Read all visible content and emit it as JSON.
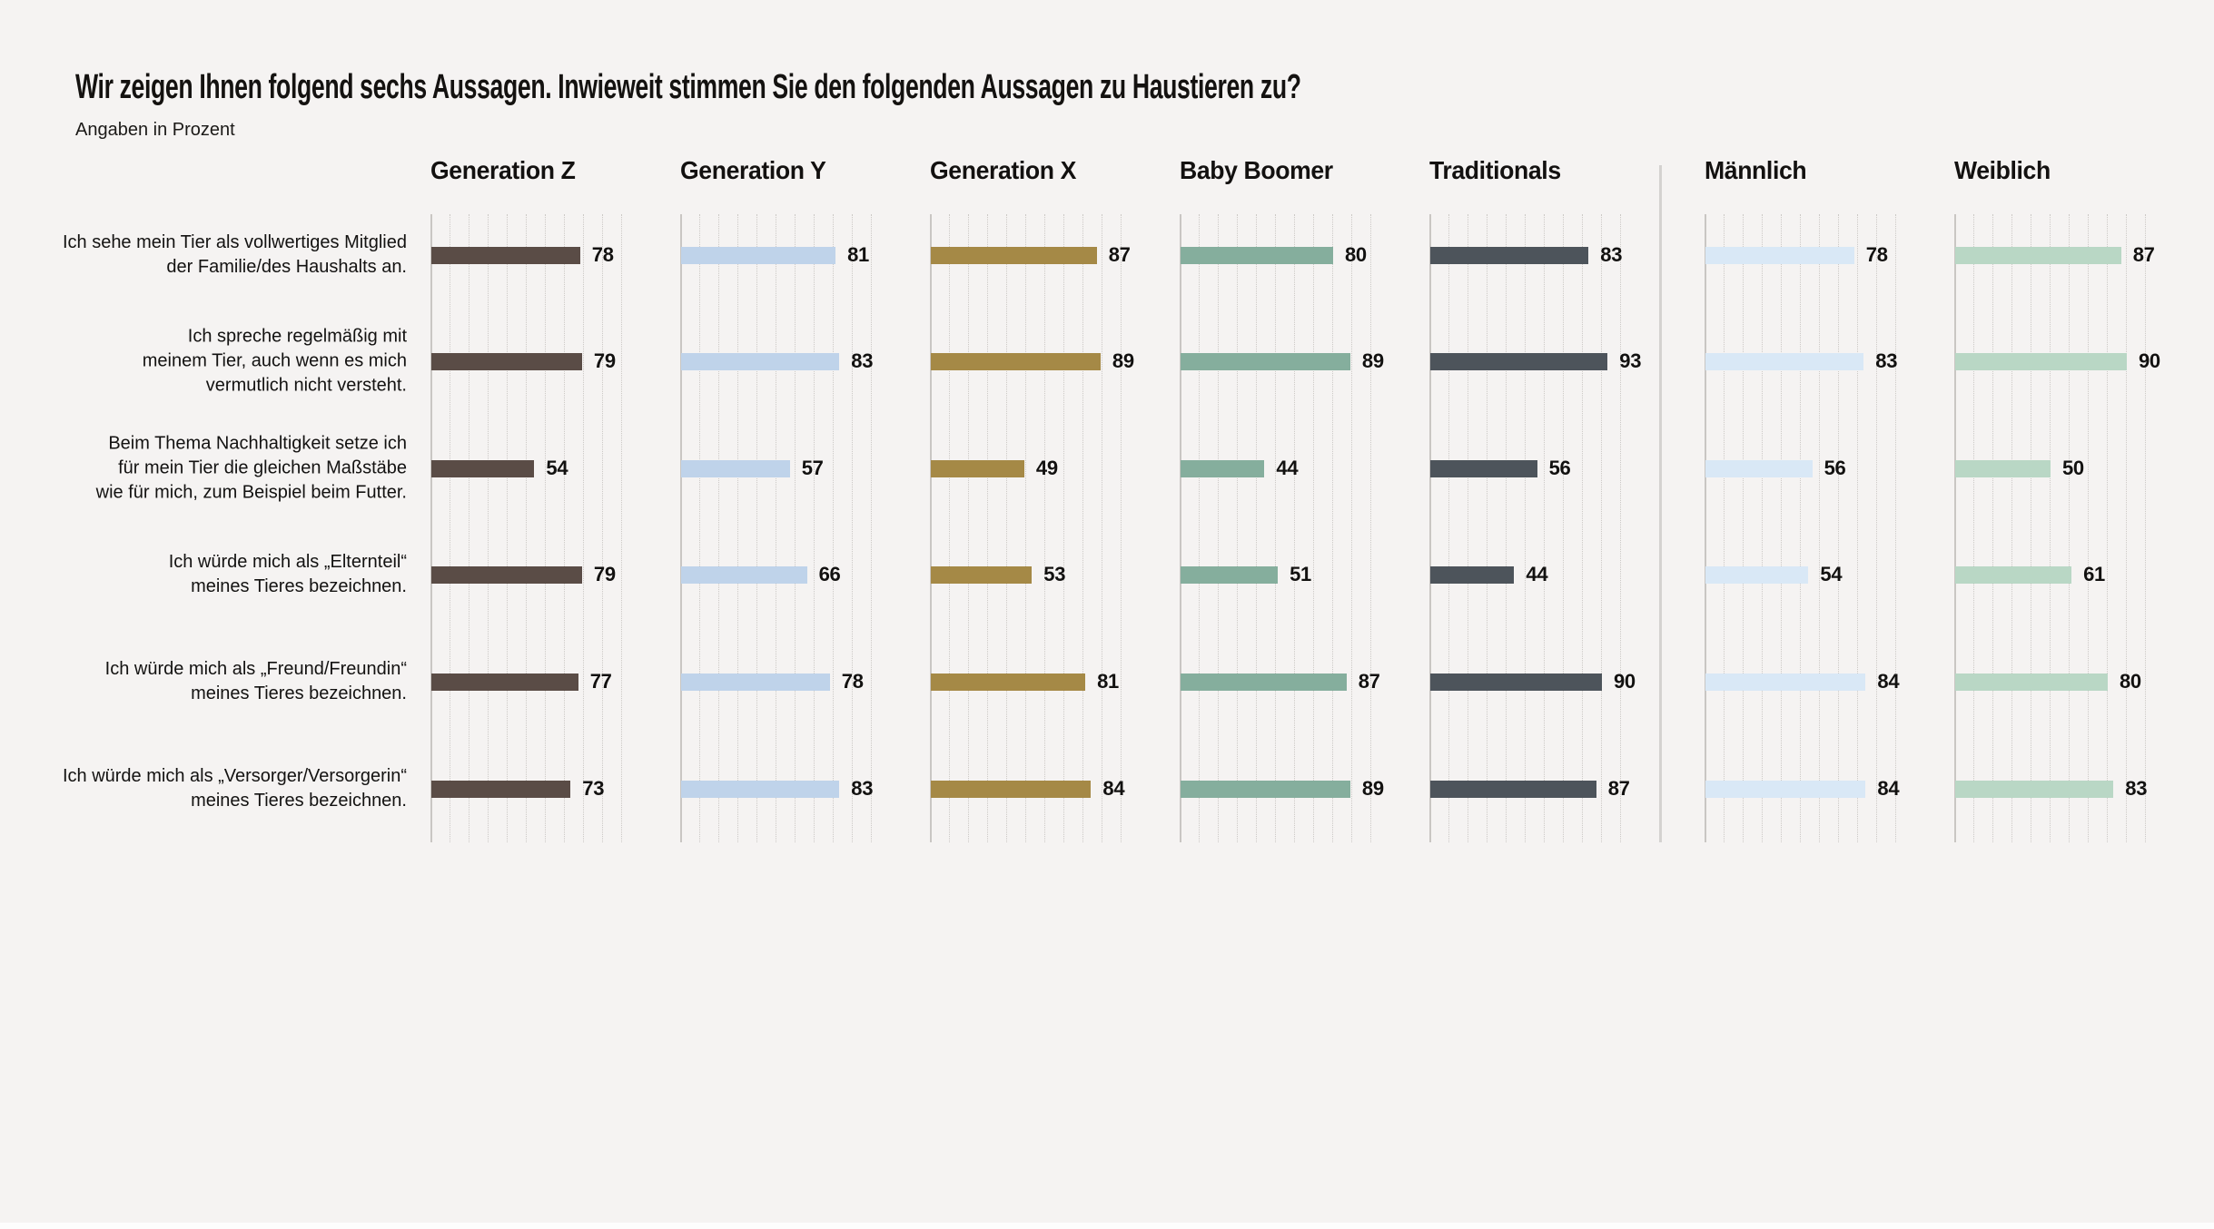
{
  "chart_data": {
    "type": "bar",
    "orientation": "horizontal",
    "title": "Wir zeigen Ihnen folgend sechs Aussagen. Inwieweit stimmen Sie den folgenden Aussagen zu Haustieren zu?",
    "subtitle": "Angaben in Prozent",
    "value_unit": "percent",
    "xlim": [
      0,
      100
    ],
    "grid": "vertical dotted gridlines every 10 units, no tick labels",
    "legend_position": "column headers above each small-multiple panel",
    "categories": [
      "Ich sehe mein Tier als vollwertiges Mitglied der Familie/des Haushalts an.",
      "Ich spreche regelmäßig mit meinem Tier, auch wenn es mich vermutlich nicht versteht.",
      "Beim Thema Nachhaltigkeit setze ich für mein Tier die gleichen Maßstäbe wie für mich, zum Beispiel beim Futter.",
      "Ich würde mich als „Elternteil“ meines Tieres bezeichnen.",
      "Ich würde mich als „Freund/Freundin“ meines Tieres bezeichnen.",
      "Ich würde mich als „Versorger/Versorgerin“ meines Tieres bezeichnen."
    ],
    "category_label_lines": [
      [
        "Ich sehe mein Tier als vollwertiges Mitglied",
        "der Familie/des Haushalts an."
      ],
      [
        "Ich spreche regelmäßig mit",
        "meinem Tier, auch wenn es mich",
        "vermutlich nicht versteht."
      ],
      [
        "Beim Thema Nachhaltigkeit setze ich",
        "für mein Tier die gleichen Maßstäbe",
        "wie für mich, zum Beispiel beim Futter."
      ],
      [
        "Ich würde mich als „Elternteil“",
        "meines Tieres bezeichnen."
      ],
      [
        "Ich würde mich als „Freund/Freundin“",
        "meines Tieres bezeichnen."
      ],
      [
        "Ich würde mich als „Versorger/Versorgerin“",
        "meines Tieres bezeichnen."
      ]
    ],
    "series": [
      {
        "name": "Generation Z",
        "color": "#5a4c46",
        "values": [
          78,
          79,
          54,
          79,
          77,
          73
        ]
      },
      {
        "name": "Generation Y",
        "color": "#bfd3ea",
        "values": [
          81,
          83,
          57,
          66,
          78,
          83
        ]
      },
      {
        "name": "Generation X",
        "color": "#a58946",
        "values": [
          87,
          89,
          49,
          53,
          81,
          84
        ]
      },
      {
        "name": "Baby Boomer",
        "color": "#85ae9d",
        "values": [
          80,
          89,
          44,
          51,
          87,
          89
        ]
      },
      {
        "name": "Traditionals",
        "color": "#4d545b",
        "values": [
          83,
          93,
          56,
          44,
          90,
          87
        ]
      },
      {
        "name": "Männlich",
        "color": "#d9e8f6",
        "values": [
          78,
          83,
          56,
          54,
          84,
          84
        ]
      },
      {
        "name": "Weiblich",
        "color": "#b9d7c5",
        "values": [
          87,
          90,
          50,
          61,
          80,
          83
        ]
      }
    ],
    "group_divider": "vertical light gray rule between Traditionals and Männlich panels",
    "background_color": "#f5f3f2"
  }
}
